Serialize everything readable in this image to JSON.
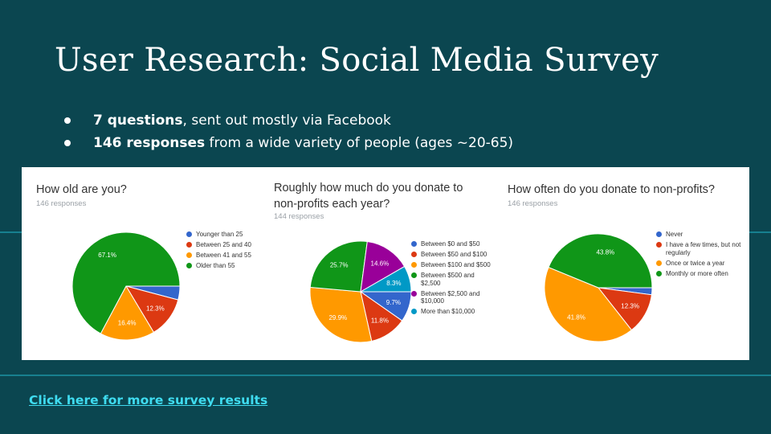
{
  "slide": {
    "title": "User Research: Social Media Survey",
    "bullets": [
      {
        "bold": "7 questions",
        "rest": ", sent out mostly via Facebook"
      },
      {
        "bold": "146 responses",
        "rest": " from a wide variety of people (ages ~20-65)"
      }
    ],
    "link_text": "Click here for more survey results"
  },
  "colors": {
    "background": "#0b4650",
    "accent_line": "#17808f",
    "link": "#3fdcf0",
    "blue": "#3366cc",
    "red": "#dc3912",
    "orange": "#ff9900",
    "green": "#109618",
    "purple": "#990099",
    "teal": "#0099c6"
  },
  "chart_data": [
    {
      "type": "pie",
      "title": "How old are you?",
      "responses": "146 responses",
      "slices": [
        {
          "label": "Younger than 25",
          "value": 4.1,
          "color": "#3366cc",
          "value_label": ""
        },
        {
          "label": "Between 25 and 40",
          "value": 12.3,
          "color": "#dc3912",
          "value_label": "12.3%"
        },
        {
          "label": "Between 41 and 55",
          "value": 16.4,
          "color": "#ff9900",
          "value_label": "16.4%"
        },
        {
          "label": "Older than 55",
          "value": 67.1,
          "color": "#109618",
          "value_label": "67.1%"
        }
      ]
    },
    {
      "type": "pie",
      "title": "Roughly how much do you donate to non-profits each year?",
      "responses": "144 responses",
      "slices": [
        {
          "label": "Between $0 and $50",
          "value": 9.7,
          "color": "#3366cc",
          "value_label": "9.7%"
        },
        {
          "label": "Between $50 and $100",
          "value": 11.8,
          "color": "#dc3912",
          "value_label": "11.8%"
        },
        {
          "label": "Between $100 and $500",
          "value": 29.9,
          "color": "#ff9900",
          "value_label": "29.9%"
        },
        {
          "label": "Between $500 and $2,500",
          "value": 25.7,
          "color": "#109618",
          "value_label": "25.7%"
        },
        {
          "label": "Between $2,500 and $10,000",
          "value": 14.6,
          "color": "#990099",
          "value_label": "14.6%"
        },
        {
          "label": "More than $10,000",
          "value": 8.3,
          "color": "#0099c6",
          "value_label": "8.3%"
        }
      ]
    },
    {
      "type": "pie",
      "title": "How often do you donate to non-profits?",
      "responses": "146 responses",
      "slices": [
        {
          "label": "Never",
          "value": 2.1,
          "color": "#3366cc",
          "value_label": ""
        },
        {
          "label": "I have a few times, but not regularly",
          "value": 12.3,
          "color": "#dc3912",
          "value_label": "12.3%"
        },
        {
          "label": "Once or twice a year",
          "value": 41.8,
          "color": "#ff9900",
          "value_label": "41.8%"
        },
        {
          "label": "Monthly or more often",
          "value": 43.8,
          "color": "#109618",
          "value_label": "43.8%"
        }
      ]
    }
  ]
}
